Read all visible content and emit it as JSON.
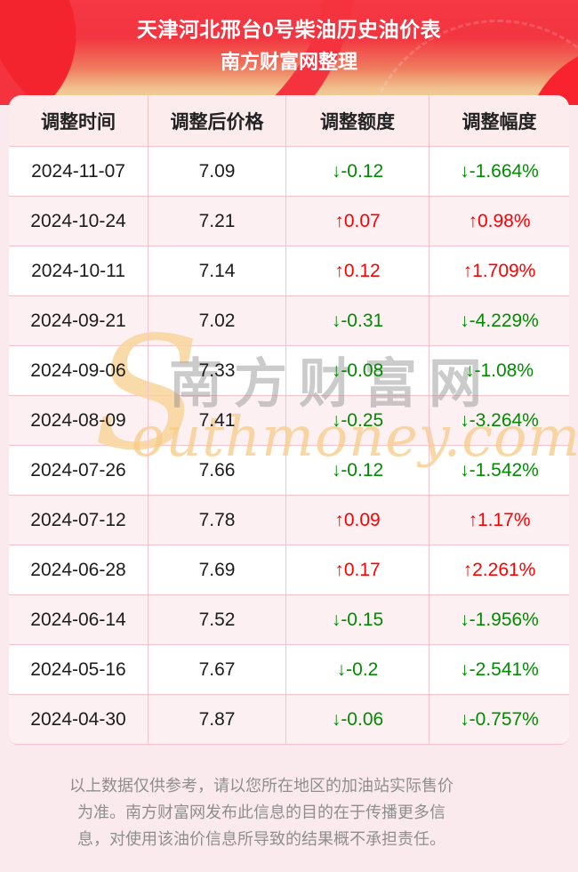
{
  "header": {
    "title": "天津河北邢台0号柴油历史油价表",
    "subtitle": "南方财富网整理"
  },
  "chart_data": {
    "type": "table",
    "title": "天津河北邢台0号柴油历史油价表",
    "subtitle": "南方财富网整理",
    "columns": [
      "调整时间",
      "调整后价格",
      "调整额度",
      "调整幅度"
    ],
    "rows": [
      [
        "2024-11-07",
        "7.09",
        "↓-0.12",
        "↓-1.664%"
      ],
      [
        "2024-10-24",
        "7.21",
        "↑0.07",
        "↑0.98%"
      ],
      [
        "2024-10-11",
        "7.14",
        "↑0.12",
        "↑1.709%"
      ],
      [
        "2024-09-21",
        "7.02",
        "↓-0.31",
        "↓-4.229%"
      ],
      [
        "2024-09-06",
        "7.33",
        "↓-0.08",
        "↓-1.08%"
      ],
      [
        "2024-08-09",
        "7.41",
        "↓-0.25",
        "↓-3.264%"
      ],
      [
        "2024-07-26",
        "7.66",
        "↓-0.12",
        "↓-1.542%"
      ],
      [
        "2024-07-12",
        "7.78",
        "↑0.09",
        "↑1.17%"
      ],
      [
        "2024-06-28",
        "7.69",
        "↑0.17",
        "↑2.261%"
      ],
      [
        "2024-06-14",
        "7.52",
        "↓-0.15",
        "↓-1.956%"
      ],
      [
        "2024-05-16",
        "7.67",
        "↓-0.2",
        "↓-2.541%"
      ],
      [
        "2024-04-30",
        "7.87",
        "↓-0.06",
        "↓-0.757%"
      ]
    ]
  },
  "watermark": {
    "s_glyph": "S",
    "cn": "南方财富网",
    "en": "outhmoney.com"
  },
  "footer": {
    "lines": [
      "以上数据仅供参考，请以您所在地区的加油站实际售价",
      "为准。南方财富网发布此信息的目的在于传播更多信",
      "息，对使用该油价信息所导致的结果概不承担责任。"
    ]
  },
  "colors": {
    "up": "#fd0000",
    "down": "#008c00",
    "banner_red_top": "#f53843",
    "banner_tan_bottom": "#f0d9a2",
    "page_bg": "#fbeaed",
    "table_header_bg": "#fdecee",
    "row_stripe_bg": "#fdf0f3",
    "divider": "#f8c3cb",
    "footer_text": "#8e8e8e",
    "watermark_tan": "#f8d7a2"
  }
}
